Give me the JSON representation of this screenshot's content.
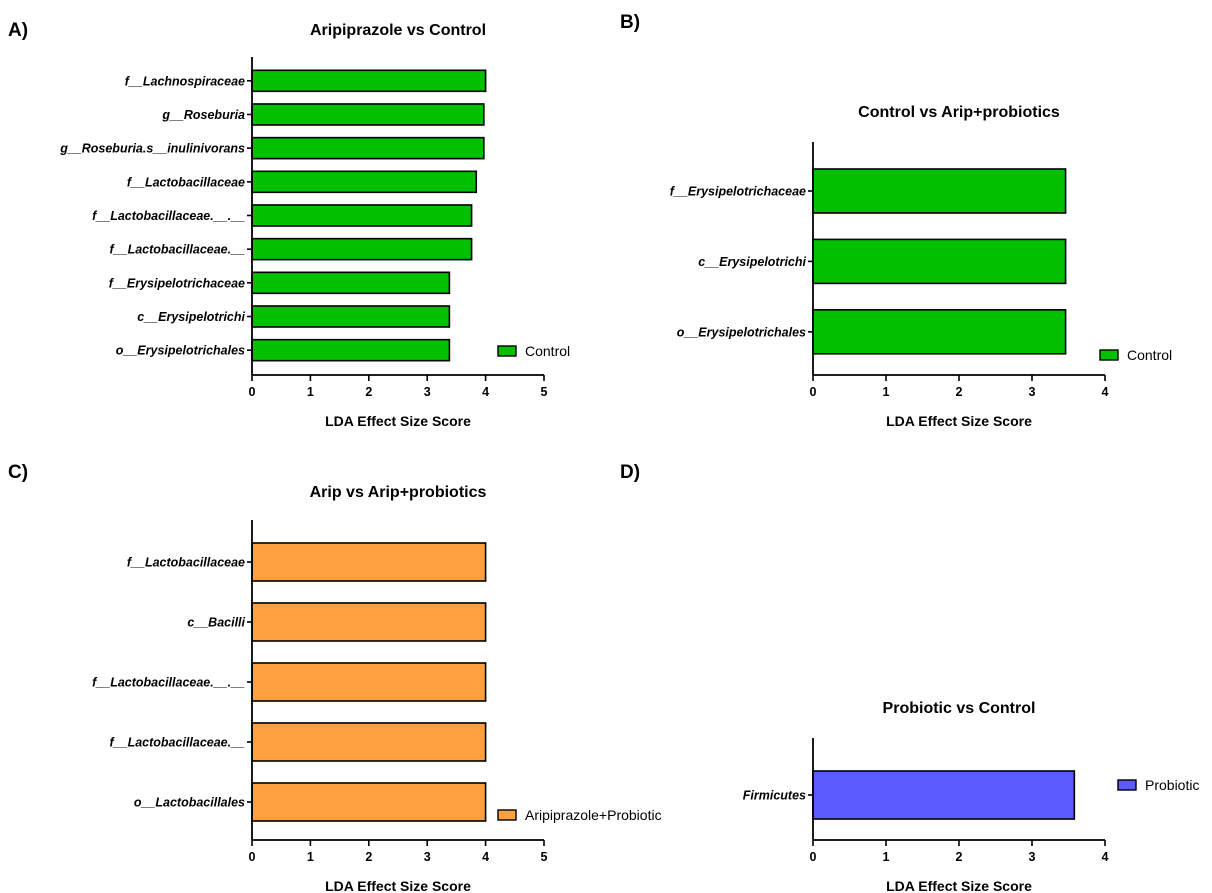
{
  "chart_data": [
    {
      "panel": "A)",
      "type": "bar",
      "orientation": "horizontal",
      "title": "Aripiprazole vs Control",
      "categories": [
        "f__Lachnospiraceae",
        "g__Roseburia",
        "g__Roseburia.s__inulinivorans",
        "f__Lactobacillaceae",
        "f__Lactobacillaceae.__.__",
        "f__Lactobacillaceae.__",
        "f__Erysipelotrichaceae",
        "c__Erysipelotrichi",
        "o__Erysipelotrichales"
      ],
      "series": [
        {
          "name": "Control",
          "color": "#00c000",
          "values": [
            4.0,
            3.97,
            3.97,
            3.84,
            3.76,
            3.76,
            3.38,
            3.38,
            3.38
          ]
        }
      ],
      "xlabel": "LDA Effect Size Score",
      "ylabel": "",
      "xlim": [
        0,
        5
      ],
      "xticks": [
        "0",
        "1",
        "2",
        "3",
        "4",
        "5"
      ],
      "legend_position": "bottom-right",
      "grid": false
    },
    {
      "panel": "B)",
      "type": "bar",
      "orientation": "horizontal",
      "title": "Control vs Arip+probiotics",
      "categories": [
        "f__Erysipelotrichaceae",
        "c__Erysipelotrichi",
        "o__Erysipelotrichales"
      ],
      "series": [
        {
          "name": "Control",
          "color": "#00c000",
          "values": [
            3.46,
            3.46,
            3.46
          ]
        }
      ],
      "xlabel": "LDA Effect Size Score",
      "ylabel": "",
      "xlim": [
        0,
        4
      ],
      "xticks": [
        "0",
        "1",
        "2",
        "3",
        "4"
      ],
      "legend_position": "bottom-right",
      "grid": false
    },
    {
      "panel": "C)",
      "type": "bar",
      "orientation": "horizontal",
      "title": "Arip vs Arip+probiotics",
      "categories": [
        "f__Lactobacillaceae",
        "c__Bacilli",
        "f__Lactobacillaceae.__.__",
        "f__Lactobacillaceae.__",
        "o__Lactobacillales"
      ],
      "series": [
        {
          "name": "Aripiprazole+Probiotic",
          "color": "#ffa040",
          "values": [
            4.0,
            4.0,
            4.0,
            4.0,
            4.0
          ]
        }
      ],
      "xlabel": "LDA Effect Size Score",
      "ylabel": "",
      "xlim": [
        0,
        5
      ],
      "xticks": [
        "0",
        "1",
        "2",
        "3",
        "4",
        "5"
      ],
      "legend_position": "bottom-right",
      "grid": false
    },
    {
      "panel": "D)",
      "type": "bar",
      "orientation": "horizontal",
      "title": "Probiotic vs Control",
      "categories": [
        "Firmicutes"
      ],
      "series": [
        {
          "name": "Probiotic",
          "color": "#5b5bff",
          "values": [
            3.58
          ]
        }
      ],
      "xlabel": "LDA Effect Size Score",
      "ylabel": "",
      "xlim": [
        0,
        4
      ],
      "xticks": [
        "0",
        "1",
        "2",
        "3",
        "4"
      ],
      "legend_position": "bottom-right",
      "grid": false
    }
  ]
}
